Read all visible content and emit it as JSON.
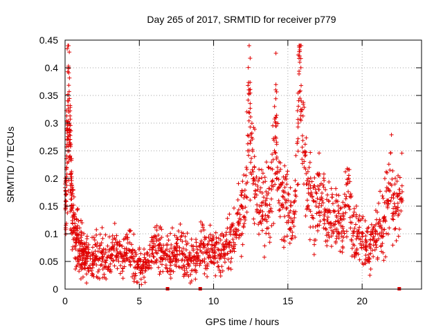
{
  "chart_data": {
    "type": "scatter",
    "title": "Day 265 of 2017, SRMTID for receiver p779",
    "xlabel": "GPS time / hours",
    "ylabel": "SRMTID / TECUs",
    "xlim": [
      0,
      24
    ],
    "ylim": [
      0,
      0.45
    ],
    "xticks": [
      0,
      5,
      10,
      15,
      20
    ],
    "xtick_labels": [
      "0",
      "5",
      "10",
      "15",
      "20"
    ],
    "yticks": [
      0,
      0.05,
      0.1,
      0.15,
      0.2,
      0.25,
      0.3,
      0.35,
      0.4,
      0.45
    ],
    "ytick_labels": [
      "0",
      "0.05",
      "0.1",
      "0.15",
      "0.2",
      "0.25",
      "0.3",
      "0.35",
      "0.4",
      "0.45"
    ],
    "grid": true,
    "marker": "+",
    "color": "#e00000",
    "zero_markers_x": [
      6.9,
      9.1,
      22.5
    ],
    "series": [
      {
        "name": "SRMTID",
        "x": [
          0.0,
          0.05,
          0.1,
          0.15,
          0.2,
          0.25,
          0.3,
          0.35,
          0.4,
          0.45,
          0.5,
          0.6,
          0.7,
          0.8,
          0.9,
          1.0,
          1.1,
          1.2,
          1.3,
          1.4,
          1.5,
          1.7,
          1.9,
          2.1,
          2.3,
          2.5,
          2.7,
          2.9,
          3.1,
          3.3,
          3.5,
          3.7,
          3.9,
          4.1,
          4.3,
          4.5,
          4.7,
          4.9,
          5.1,
          5.3,
          5.5,
          5.7,
          5.9,
          6.1,
          6.3,
          6.5,
          6.7,
          6.9,
          7.1,
          7.3,
          7.5,
          7.7,
          7.9,
          8.1,
          8.3,
          8.5,
          8.7,
          8.9,
          9.1,
          9.3,
          9.5,
          9.7,
          9.9,
          10.1,
          10.3,
          10.5,
          10.7,
          10.9,
          11.1,
          11.3,
          11.5,
          11.7,
          11.9,
          12.1,
          12.3,
          12.4,
          12.5,
          12.7,
          12.9,
          13.1,
          13.3,
          13.5,
          13.7,
          13.9,
          14.1,
          14.2,
          14.3,
          14.5,
          14.7,
          14.9,
          15.1,
          15.3,
          15.5,
          15.7,
          15.8,
          15.9,
          16.1,
          16.3,
          16.5,
          16.7,
          16.9,
          17.1,
          17.3,
          17.5,
          17.7,
          17.9,
          18.1,
          18.3,
          18.5,
          18.7,
          18.9,
          19.1,
          19.3,
          19.5,
          19.7,
          19.9,
          20.1,
          20.3,
          20.5,
          20.7,
          20.9,
          21.1,
          21.3,
          21.5,
          21.7,
          21.9,
          22.1,
          22.3,
          22.5,
          22.7
        ],
        "y": [
          0.19,
          0.16,
          0.22,
          0.29,
          0.35,
          0.32,
          0.3,
          0.26,
          0.2,
          0.15,
          0.13,
          0.11,
          0.1,
          0.09,
          0.085,
          0.08,
          0.07,
          0.065,
          0.055,
          0.05,
          0.06,
          0.055,
          0.05,
          0.06,
          0.055,
          0.065,
          0.05,
          0.06,
          0.055,
          0.07,
          0.06,
          0.065,
          0.055,
          0.06,
          0.07,
          0.065,
          0.05,
          0.045,
          0.04,
          0.05,
          0.045,
          0.06,
          0.065,
          0.07,
          0.08,
          0.075,
          0.065,
          0.06,
          0.055,
          0.06,
          0.07,
          0.075,
          0.065,
          0.06,
          0.055,
          0.05,
          0.06,
          0.065,
          0.07,
          0.075,
          0.065,
          0.06,
          0.07,
          0.065,
          0.06,
          0.07,
          0.075,
          0.08,
          0.085,
          0.09,
          0.1,
          0.12,
          0.15,
          0.17,
          0.25,
          0.36,
          0.28,
          0.2,
          0.17,
          0.15,
          0.14,
          0.16,
          0.13,
          0.18,
          0.25,
          0.31,
          0.22,
          0.19,
          0.15,
          0.16,
          0.13,
          0.12,
          0.17,
          0.3,
          0.41,
          0.34,
          0.22,
          0.19,
          0.17,
          0.16,
          0.15,
          0.18,
          0.16,
          0.14,
          0.13,
          0.12,
          0.14,
          0.13,
          0.12,
          0.11,
          0.15,
          0.2,
          0.12,
          0.11,
          0.1,
          0.09,
          0.08,
          0.07,
          0.08,
          0.09,
          0.1,
          0.12,
          0.11,
          0.13,
          0.15,
          0.19,
          0.17,
          0.14,
          0.18,
          0.16
        ]
      }
    ]
  }
}
